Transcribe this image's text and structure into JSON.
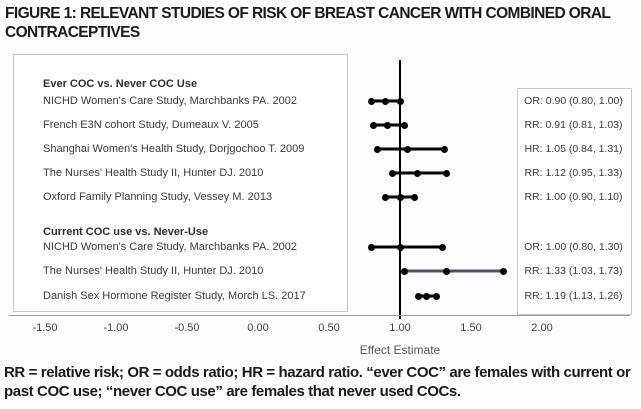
{
  "page": {
    "title": "FIGURE 1: RELEVANT STUDIES OF RISK OF BREAST CANCER WITH COMBINED ORAL CONTRACEPTIVES",
    "footnote": "RR = relative risk; OR = odds ratio; HR = hazard ratio. “ever COC” are females with current or past COC use; “never COC use” are females that never used COCs."
  },
  "chart_data": {
    "type": "scatter",
    "subtype": "forest_plot",
    "title": "FIGURE 1: RELEVANT STUDIES OF RISK OF BREAST CANCER WITH COMBINED ORAL CONTRACEPTIVES",
    "xlabel": "Effect Estimate",
    "xlim": [
      -1.75,
      2.45
    ],
    "x_ticks": [
      -1.5,
      -1.0,
      -0.5,
      0.0,
      0.5,
      1.0,
      1.5,
      2.0
    ],
    "x_tick_labels": [
      "-1.50",
      "-1.00",
      "-0.50",
      "0.00",
      "0.50",
      "1.00",
      "1.50",
      "2.00"
    ],
    "reference_line_x": 1.0,
    "grid": false,
    "marker_color": "#000000",
    "default_line_color": "#000000",
    "groups": [
      {
        "header": "Ever COC vs. Never COC Use",
        "studies": [
          {
            "label": "NICHD Women's Care Study, Marchbanks PA. 2002",
            "measure": "OR",
            "estimate": 0.9,
            "ci_low": 0.8,
            "ci_high": 1.0,
            "estimate_label": "OR: 0.90 (0.80, 1.00)",
            "line_color": "#000000"
          },
          {
            "label": "French E3N cohort Study, Dumeaux V. 2005",
            "measure": "RR",
            "estimate": 0.91,
            "ci_low": 0.81,
            "ci_high": 1.03,
            "estimate_label": "RR: 0.91 (0.81, 1.03)",
            "line_color": "#000000"
          },
          {
            "label": "Shanghai Women's Health Study, Dorjgochoo T. 2009",
            "measure": "HR",
            "estimate": 1.05,
            "ci_low": 0.84,
            "ci_high": 1.31,
            "estimate_label": "HR: 1.05 (0.84, 1.31)",
            "line_color": "#000000"
          },
          {
            "label": "The Nurses' Health Study II, Hunter DJ. 2010",
            "measure": "RR",
            "estimate": 1.12,
            "ci_low": 0.95,
            "ci_high": 1.33,
            "estimate_label": "RR: 1.12 (0.95, 1.33)",
            "line_color": "#000000"
          },
          {
            "label": "Oxford Family Planning Study, Vessey M. 2013",
            "measure": "RR",
            "estimate": 1.0,
            "ci_low": 0.9,
            "ci_high": 1.1,
            "estimate_label": "RR: 1.00 (0.90, 1.10)",
            "line_color": "#000000"
          }
        ]
      },
      {
        "header": "Current COC use vs. Never-Use",
        "studies": [
          {
            "label": "NICHD Women's Care Study, Marchbanks PA. 2002",
            "measure": "OR",
            "estimate": 1.0,
            "ci_low": 0.8,
            "ci_high": 1.3,
            "estimate_label": "OR: 1.00 (0.80, 1.30)",
            "line_color": "#000000"
          },
          {
            "label": "The Nurses' Health Study II, Hunter DJ. 2010",
            "measure": "RR",
            "estimate": 1.33,
            "ci_low": 1.03,
            "ci_high": 1.73,
            "estimate_label": "RR: 1.33 (1.03, 1.73)",
            "line_color": "#44546a"
          },
          {
            "label": "Danish Sex Hormone Register Study, Morch LS. 2017",
            "measure": "RR",
            "estimate": 1.19,
            "ci_low": 1.13,
            "ci_high": 1.26,
            "estimate_label": "RR: 1.19 (1.13, 1.26)",
            "line_color": "#000000"
          }
        ]
      }
    ]
  }
}
